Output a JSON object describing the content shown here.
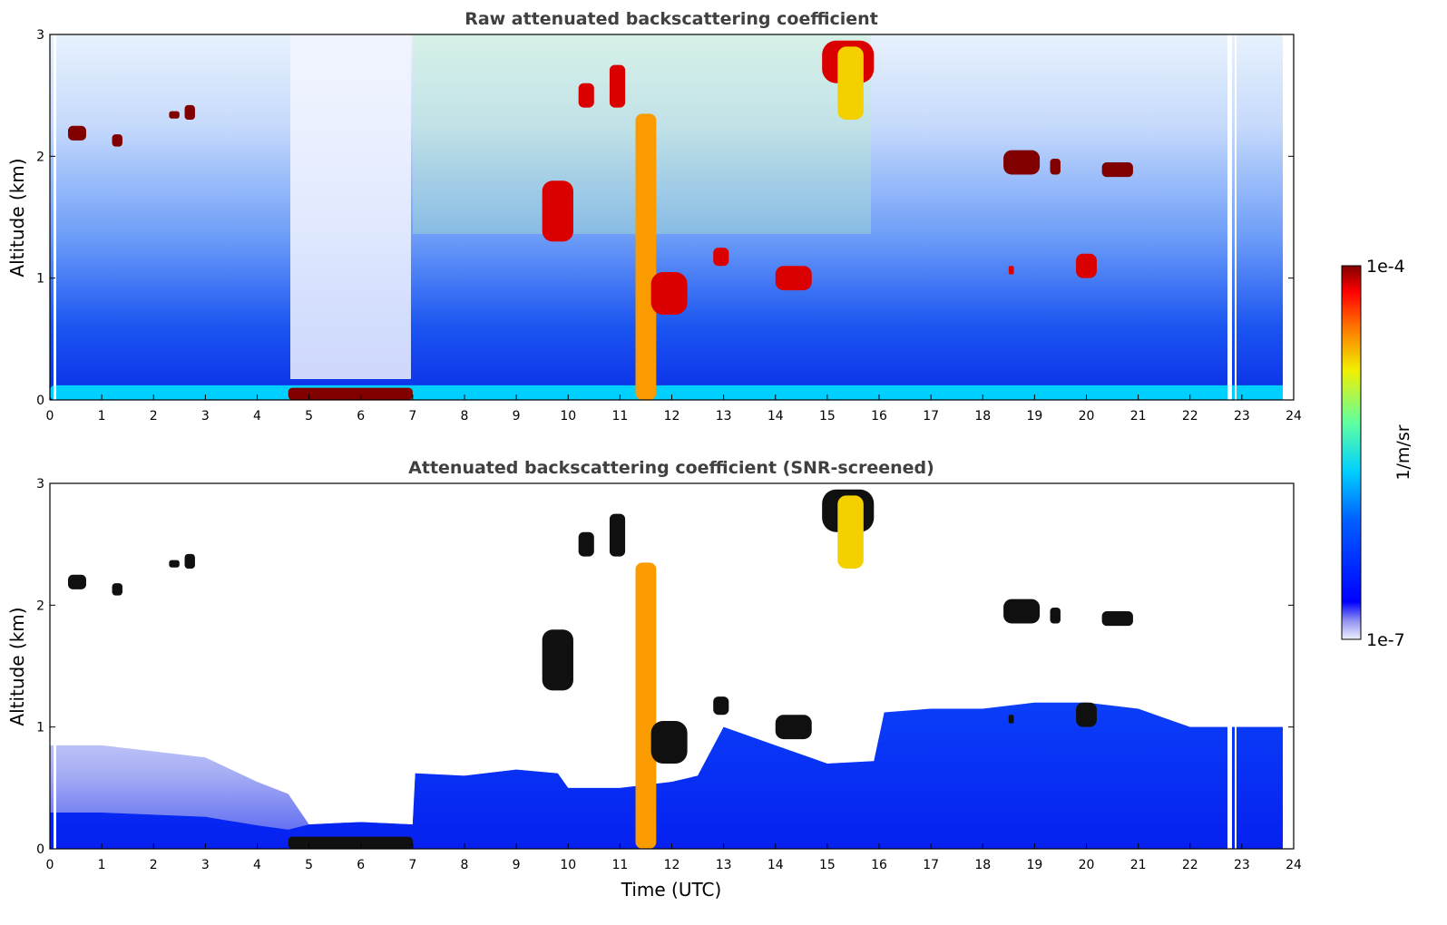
{
  "chart_data": [
    {
      "type": "heatmap",
      "title": "Raw attenuated backscattering coefficient",
      "xlabel": "",
      "ylabel": "Altitude (km)",
      "xlim": [
        0,
        24
      ],
      "ylim": [
        0,
        3
      ],
      "xticks": [
        "0",
        "1",
        "2",
        "3",
        "4",
        "5",
        "6",
        "7",
        "8",
        "9",
        "10",
        "11",
        "12",
        "13",
        "14",
        "15",
        "16",
        "17",
        "18",
        "19",
        "20",
        "21",
        "22",
        "23",
        "24"
      ],
      "yticks": [
        "0",
        "1",
        "2",
        "3"
      ],
      "features": [
        {
          "label": "surface layer",
          "t0": 0,
          "t1": 24,
          "z0": 0,
          "z1": 0.12,
          "level": 0.45
        },
        {
          "label": "saturated low layer",
          "t0": 4.6,
          "t1": 7.0,
          "z0": 0,
          "z1": 0.1,
          "level": 1.0
        },
        {
          "label": "cloud",
          "t0": 0.35,
          "t1": 0.7,
          "z0": 2.13,
          "z1": 2.25,
          "level": 1.0
        },
        {
          "label": "cloud",
          "t0": 1.2,
          "t1": 1.4,
          "z0": 2.08,
          "z1": 2.18,
          "level": 1.0
        },
        {
          "label": "cloud",
          "t0": 2.3,
          "t1": 2.5,
          "z0": 2.31,
          "z1": 2.37,
          "level": 1.0
        },
        {
          "label": "cloud",
          "t0": 2.6,
          "t1": 2.8,
          "z0": 2.3,
          "z1": 2.42,
          "level": 1.0
        },
        {
          "label": "cloud",
          "t0": 9.5,
          "t1": 10.1,
          "z0": 1.3,
          "z1": 1.8,
          "level": 0.95
        },
        {
          "label": "cloud",
          "t0": 10.2,
          "t1": 10.5,
          "z0": 2.4,
          "z1": 2.6,
          "level": 0.95
        },
        {
          "label": "cloud",
          "t0": 10.8,
          "t1": 11.1,
          "z0": 2.4,
          "z1": 2.75,
          "level": 0.95
        },
        {
          "label": "precipitation",
          "t0": 11.3,
          "t1": 11.7,
          "z0": 0,
          "z1": 2.35,
          "level": 0.8
        },
        {
          "label": "cloud",
          "t0": 11.6,
          "t1": 12.3,
          "z0": 0.7,
          "z1": 1.05,
          "level": 0.95
        },
        {
          "label": "cloud",
          "t0": 12.8,
          "t1": 13.1,
          "z0": 1.1,
          "z1": 1.25,
          "level": 0.95
        },
        {
          "label": "cloud",
          "t0": 14.0,
          "t1": 14.7,
          "z0": 0.9,
          "z1": 1.1,
          "level": 0.95
        },
        {
          "label": "cloud",
          "t0": 14.9,
          "t1": 15.9,
          "z0": 2.6,
          "z1": 2.95,
          "level": 0.95
        },
        {
          "label": "plume",
          "t0": 15.2,
          "t1": 15.7,
          "z0": 2.3,
          "z1": 2.9,
          "level": 0.75
        },
        {
          "label": "cloud",
          "t0": 18.4,
          "t1": 19.1,
          "z0": 1.85,
          "z1": 2.05,
          "level": 1.0
        },
        {
          "label": "cloud",
          "t0": 19.3,
          "t1": 19.5,
          "z0": 1.85,
          "z1": 1.98,
          "level": 1.0
        },
        {
          "label": "cloud",
          "t0": 20.3,
          "t1": 20.9,
          "z0": 1.83,
          "z1": 1.95,
          "level": 1.0
        },
        {
          "label": "cloud",
          "t0": 19.8,
          "t1": 20.2,
          "z0": 1.0,
          "z1": 1.2,
          "level": 0.95
        },
        {
          "label": "cloud",
          "t0": 18.5,
          "t1": 18.6,
          "z0": 1.03,
          "z1": 1.1,
          "level": 0.95
        }
      ]
    },
    {
      "type": "heatmap",
      "title": "Attenuated backscattering coefficient (SNR-screened)",
      "xlabel": "Time (UTC)",
      "ylabel": "Altitude (km)",
      "xlim": [
        0,
        24
      ],
      "ylim": [
        0,
        3
      ],
      "xticks": [
        "0",
        "1",
        "2",
        "3",
        "4",
        "5",
        "6",
        "7",
        "8",
        "9",
        "10",
        "11",
        "12",
        "13",
        "14",
        "15",
        "16",
        "17",
        "18",
        "19",
        "20",
        "21",
        "22",
        "23",
        "24"
      ],
      "yticks": [
        "0",
        "1",
        "2",
        "3"
      ],
      "boundary_layer_top_km": [
        [
          0,
          0.85
        ],
        [
          1,
          0.85
        ],
        [
          2,
          0.8
        ],
        [
          3,
          0.75
        ],
        [
          4,
          0.55
        ],
        [
          4.6,
          0.45
        ],
        [
          5.0,
          0.2
        ],
        [
          6,
          0.22
        ],
        [
          7.0,
          0.2
        ],
        [
          7.05,
          0.62
        ],
        [
          8,
          0.6
        ],
        [
          9,
          0.65
        ],
        [
          9.8,
          0.62
        ],
        [
          10,
          0.5
        ],
        [
          11,
          0.5
        ],
        [
          12,
          0.55
        ],
        [
          12.5,
          0.6
        ],
        [
          13,
          1.0
        ],
        [
          14,
          0.85
        ],
        [
          15,
          0.7
        ],
        [
          15.9,
          0.72
        ],
        [
          16.1,
          1.12
        ],
        [
          17,
          1.15
        ],
        [
          18,
          1.15
        ],
        [
          19,
          1.2
        ],
        [
          20,
          1.2
        ],
        [
          21,
          1.15
        ],
        [
          22,
          1.0
        ],
        [
          23,
          1.0
        ],
        [
          23.8,
          1.0
        ]
      ],
      "colorbar": {
        "label": "1/m/sr",
        "min_label": "1e-7",
        "max_label": "1e-4"
      }
    }
  ]
}
